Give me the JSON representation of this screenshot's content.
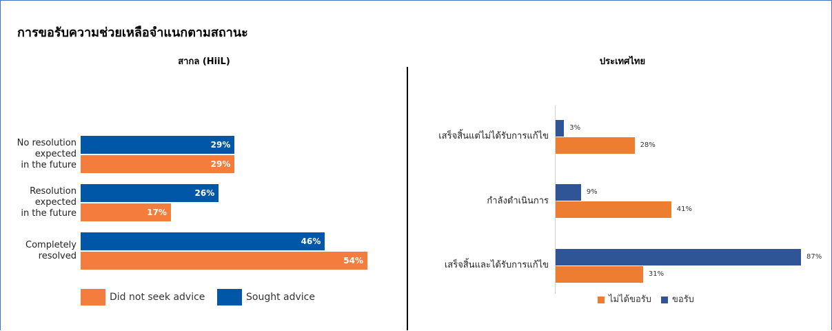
{
  "title": "การขอรับความช่วยเหลือจำแนกตามสถานะ",
  "chart_data": [
    {
      "type": "hbar",
      "title": "สากล (HiiL)",
      "categories": [
        "No resolution\nexpected\nin the future",
        "Resolution\nexpected\nin the future",
        "Completely\nresolved"
      ],
      "series": [
        {
          "name": "Did not seek advice",
          "color": "#f47c3c",
          "values": [
            29,
            17,
            54
          ],
          "value_labels": [
            "29%",
            "17%",
            "54%"
          ]
        },
        {
          "name": "Sought advice",
          "color": "#0057a8",
          "values": [
            29,
            26,
            46
          ],
          "value_labels": [
            "29%",
            "26%",
            "46%"
          ]
        }
      ]
    },
    {
      "type": "hbar",
      "title": "ประเทศไทย",
      "categories": [
        "เสร็จสิ้นแต่ไม่ได้รับการแก้ไข",
        "กำลังดำเนินการ",
        "เสร็จสิ้นและได้รับการแก้ไข"
      ],
      "series": [
        {
          "name": "ไม่ได้ขอรับ",
          "color": "#ed7d31",
          "values": [
            28,
            41,
            31
          ],
          "value_labels": [
            "28%",
            "41%",
            "31%"
          ]
        },
        {
          "name": "ขอรับ",
          "color": "#2f5597",
          "values": [
            3,
            9,
            87
          ],
          "value_labels": [
            "3%",
            "9%",
            "87%"
          ]
        }
      ]
    }
  ]
}
